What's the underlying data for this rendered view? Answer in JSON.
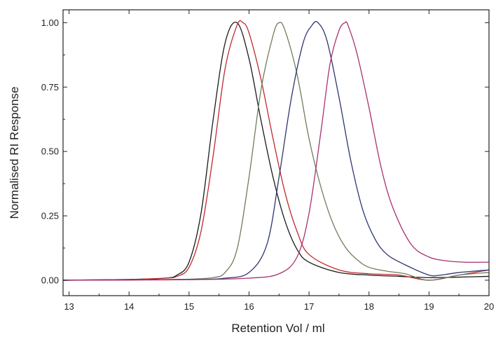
{
  "chart_data": {
    "type": "line",
    "title": "",
    "xlabel": "Retention Vol / ml",
    "ylabel": "Normalised RI Response",
    "xlim": [
      12.9,
      20
    ],
    "ylim": [
      -0.06,
      1.05
    ],
    "xticks": [
      13,
      14,
      15,
      16,
      17,
      18,
      19,
      20
    ],
    "yticks": [
      0.0,
      0.25,
      0.5,
      0.75,
      1.0
    ],
    "ytick_labels": [
      "0.00",
      "0.25",
      "0.50",
      "0.75",
      "1.00"
    ],
    "grid": false,
    "legend": "none",
    "series": [
      {
        "color": "#1a1a1a",
        "x": [
          12.9,
          14.0,
          14.6,
          14.8,
          15.0,
          15.2,
          15.4,
          15.6,
          15.8,
          16.0,
          16.2,
          16.4,
          16.6,
          16.8,
          17.0,
          17.5,
          18.0,
          18.5,
          19.0,
          19.5,
          20.0
        ],
        "y": [
          0.0,
          0.003,
          0.008,
          0.02,
          0.07,
          0.26,
          0.62,
          0.92,
          1.0,
          0.86,
          0.62,
          0.4,
          0.23,
          0.12,
          0.07,
          0.03,
          0.02,
          0.015,
          0.01,
          0.012,
          0.015
        ]
      },
      {
        "color": "#c0282d",
        "x": [
          12.9,
          14.0,
          14.6,
          14.8,
          15.0,
          15.2,
          15.4,
          15.6,
          15.8,
          15.9,
          16.0,
          16.2,
          16.4,
          16.6,
          16.8,
          17.0,
          17.5,
          18.0,
          18.5,
          19.0,
          19.5,
          20.0
        ],
        "y": [
          0.0,
          0.003,
          0.008,
          0.015,
          0.05,
          0.19,
          0.48,
          0.82,
          0.99,
          1.0,
          0.96,
          0.78,
          0.55,
          0.34,
          0.19,
          0.1,
          0.04,
          0.025,
          0.02,
          0.0,
          0.02,
          0.04
        ]
      },
      {
        "color": "#6e7d5a",
        "x": [
          12.9,
          14.5,
          15.0,
          15.4,
          15.6,
          15.8,
          16.0,
          16.2,
          16.4,
          16.5,
          16.6,
          16.8,
          17.0,
          17.2,
          17.4,
          17.6,
          17.8,
          18.0,
          18.3,
          18.6,
          19.0,
          19.5,
          20.0
        ],
        "y": [
          0.0,
          0.002,
          0.004,
          0.01,
          0.03,
          0.12,
          0.4,
          0.74,
          0.95,
          1.0,
          0.97,
          0.8,
          0.55,
          0.36,
          0.22,
          0.13,
          0.08,
          0.05,
          0.035,
          0.025,
          0.0,
          0.02,
          0.03
        ]
      },
      {
        "color": "#2d3570",
        "x": [
          12.9,
          15.0,
          15.6,
          16.0,
          16.3,
          16.5,
          16.7,
          16.9,
          17.05,
          17.15,
          17.3,
          17.5,
          17.7,
          17.9,
          18.1,
          18.3,
          18.6,
          19.0,
          19.2,
          19.5,
          20.0
        ],
        "y": [
          0.0,
          0.003,
          0.008,
          0.03,
          0.14,
          0.4,
          0.7,
          0.92,
          0.99,
          1.0,
          0.93,
          0.71,
          0.46,
          0.27,
          0.16,
          0.1,
          0.06,
          0.02,
          0.02,
          0.03,
          0.04
        ]
      },
      {
        "color": "#a8316e",
        "x": [
          12.9,
          15.0,
          16.0,
          16.5,
          16.8,
          17.0,
          17.2,
          17.35,
          17.5,
          17.6,
          17.65,
          17.8,
          18.0,
          18.2,
          18.4,
          18.7,
          19.0,
          19.3,
          19.6,
          20.0
        ],
        "y": [
          0.0,
          0.002,
          0.008,
          0.025,
          0.09,
          0.26,
          0.58,
          0.84,
          0.97,
          1.0,
          0.99,
          0.88,
          0.67,
          0.44,
          0.28,
          0.14,
          0.09,
          0.075,
          0.07,
          0.07
        ]
      }
    ]
  }
}
